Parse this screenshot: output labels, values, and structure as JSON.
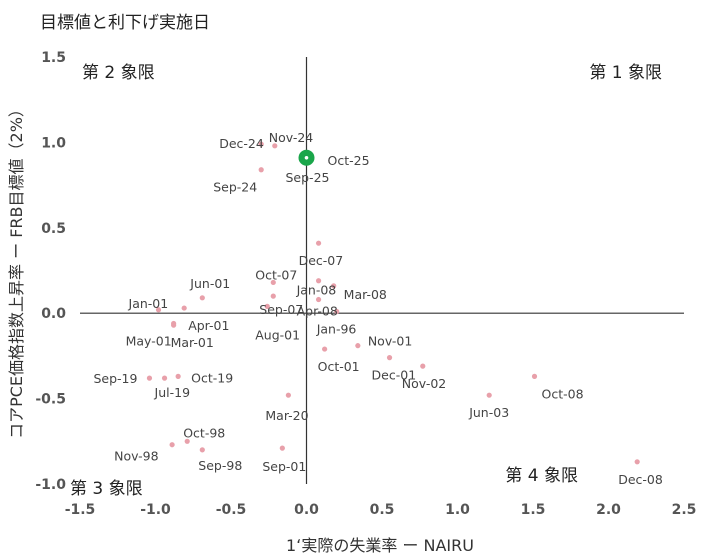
{
  "title": "目標値と利下げ実施日",
  "chart_data": {
    "type": "scatter",
    "title": "目標値と利下げ実施日",
    "xlabel": "1ʻ実際の失業率 ー NAIRU",
    "ylabel": "コアPCE価格指数上昇率 ー FRB目標値（2%）",
    "xlim": [
      -1.5,
      2.5
    ],
    "ylim": [
      -1.0,
      1.5
    ],
    "xticks": [
      "-1.5",
      "-1.0",
      "-0.5",
      "0.0",
      "0.5",
      "1.0",
      "1.5",
      "2.0",
      "2.5"
    ],
    "yticks": [
      "1.5",
      "1.0",
      "0.5",
      "0.0",
      "-0.5",
      "-1.0"
    ],
    "grid": false,
    "quadrant_labels": [
      "第 2 象限",
      "第 1 象限",
      "第 3 象限",
      "第 4 象限"
    ],
    "point_color": "#e8a0aa",
    "target_color": "#1aa64a",
    "target": {
      "x": 0.0,
      "y": 0.91,
      "label": "Oct-25",
      "label2": "Sep-25"
    },
    "points": [
      {
        "x": -0.3,
        "y": 0.99,
        "label": "Dec-24"
      },
      {
        "x": -0.21,
        "y": 0.98,
        "label": "Nov-24"
      },
      {
        "x": -0.3,
        "y": 0.84,
        "label": "Sep-24"
      },
      {
        "x": 0.08,
        "y": 0.41,
        "label": "Dec-07"
      },
      {
        "x": -0.22,
        "y": 0.18,
        "label": "Oct-07"
      },
      {
        "x": 0.08,
        "y": 0.19,
        "label": "Jan-08"
      },
      {
        "x": 0.18,
        "y": 0.16,
        "label": "Mar-08"
      },
      {
        "x": -0.69,
        "y": 0.09,
        "label": "Jun-01"
      },
      {
        "x": -0.98,
        "y": 0.02,
        "label": "Jan-01"
      },
      {
        "x": -0.81,
        "y": 0.03,
        "label": "Apr-01"
      },
      {
        "x": -0.22,
        "y": 0.1,
        "label": "Sep-07"
      },
      {
        "x": -0.26,
        "y": 0.04,
        "label": "Aug-01"
      },
      {
        "x": 0.08,
        "y": 0.08,
        "label": "Apr-08"
      },
      {
        "x": 0.2,
        "y": 0.01,
        "label": "Jan-96"
      },
      {
        "x": -0.88,
        "y": -0.06,
        "label": "May-01"
      },
      {
        "x": -0.88,
        "y": -0.07,
        "label": "Mar-01"
      },
      {
        "x": 0.12,
        "y": -0.21,
        "label": "Oct-01"
      },
      {
        "x": 0.34,
        "y": -0.19,
        "label": "Nov-01"
      },
      {
        "x": 0.55,
        "y": -0.26,
        "label": "Dec-01"
      },
      {
        "x": 0.77,
        "y": -0.31,
        "label": "Nov-02"
      },
      {
        "x": -1.04,
        "y": -0.38,
        "label": "Sep-19"
      },
      {
        "x": -0.94,
        "y": -0.38,
        "label": "Jul-19"
      },
      {
        "x": -0.85,
        "y": -0.37,
        "label": "Oct-19"
      },
      {
        "x": -0.12,
        "y": -0.48,
        "label": "Mar-20"
      },
      {
        "x": 1.21,
        "y": -0.48,
        "label": "Jun-03"
      },
      {
        "x": 1.51,
        "y": -0.37,
        "label": "Oct-08"
      },
      {
        "x": -0.79,
        "y": -0.75,
        "label": "Oct-98"
      },
      {
        "x": -0.89,
        "y": -0.77,
        "label": "Nov-98"
      },
      {
        "x": -0.69,
        "y": -0.8,
        "label": "Sep-98"
      },
      {
        "x": -0.16,
        "y": -0.79,
        "label": "Sep-01"
      },
      {
        "x": 2.19,
        "y": -0.87,
        "label": "Dec-08"
      }
    ]
  }
}
